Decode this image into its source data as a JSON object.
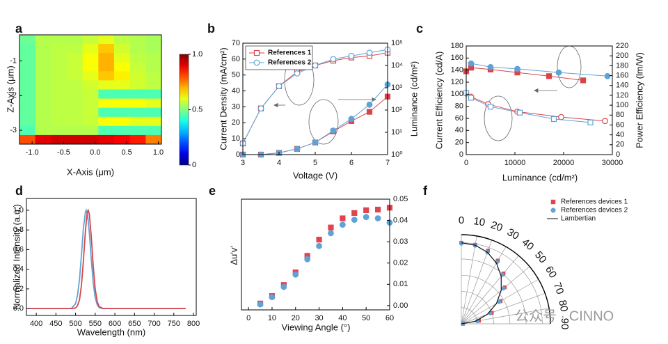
{
  "panel_labels": [
    "a",
    "b",
    "c",
    "d",
    "e",
    "f"
  ],
  "watermark": "公众号 · CINNO",
  "chart_data": [
    {
      "type": "heatmap",
      "xlabel": "X-Axis (μm)",
      "ylabel": "Z-Axis (μm)",
      "xlim": [
        -1.2,
        1.05
      ],
      "ylim": [
        -3.4,
        -0.25
      ],
      "xticks": [
        {
          "value": -1,
          "label": "-1.0"
        },
        -0.5,
        {
          "value": 0,
          "label": "0.0"
        },
        0.5,
        {
          "value": 1,
          "label": "1.0"
        }
      ],
      "yticks": [
        -3,
        -2,
        -1
      ],
      "values": [
        [
          0.48,
          0.55,
          0.55,
          0.55,
          0.57,
          0.6,
          0.56,
          0.55,
          0.54
        ],
        [
          0.47,
          0.55,
          0.56,
          0.56,
          0.6,
          0.68,
          0.58,
          0.55,
          0.54
        ],
        [
          0.47,
          0.55,
          0.56,
          0.57,
          0.62,
          0.7,
          0.6,
          0.56,
          0.55
        ],
        [
          0.47,
          0.55,
          0.56,
          0.57,
          0.62,
          0.7,
          0.62,
          0.57,
          0.55
        ],
        [
          0.47,
          0.55,
          0.56,
          0.57,
          0.6,
          0.68,
          0.64,
          0.58,
          0.56
        ],
        [
          0.47,
          0.55,
          0.56,
          0.56,
          0.58,
          0.6,
          0.6,
          0.58,
          0.56
        ],
        [
          0.47,
          0.55,
          0.56,
          0.56,
          0.57,
          0.45,
          0.45,
          0.45,
          0.45
        ],
        [
          0.47,
          0.55,
          0.56,
          0.56,
          0.57,
          0.62,
          0.62,
          0.62,
          0.6
        ],
        [
          0.47,
          0.55,
          0.56,
          0.56,
          0.57,
          0.45,
          0.45,
          0.45,
          0.45
        ],
        [
          0.47,
          0.55,
          0.56,
          0.56,
          0.57,
          0.62,
          0.62,
          0.6,
          0.6
        ],
        [
          0.45,
          0.55,
          0.55,
          0.55,
          0.55,
          0.45,
          0.45,
          0.45,
          0.45
        ],
        [
          0.8,
          0.9,
          0.92,
          0.92,
          0.92,
          0.9,
          0.88,
          0.85,
          0.75
        ]
      ],
      "clim": [
        0,
        1
      ],
      "cticks": [
        0,
        0.5,
        {
          "value": 1,
          "label": "1.0"
        }
      ]
    },
    {
      "type": "line",
      "xlabel": "Voltage (V)",
      "ylabel": "Current Density (mA/cm²)",
      "y2label": "Luminance (cd/m²)",
      "x": [
        3,
        3.5,
        4,
        4.5,
        5,
        5.5,
        6,
        6.5,
        7
      ],
      "xlim": [
        3,
        7
      ],
      "xticks": [
        3,
        4,
        5,
        6,
        7
      ],
      "ylim": [
        0,
        70
      ],
      "yticks": [
        0,
        10,
        20,
        30,
        40,
        50,
        60,
        70
      ],
      "y2lim": [
        1,
        100000
      ],
      "y2scale": "log",
      "y2ticks": [
        {
          "value": 1,
          "label": "10⁰"
        },
        {
          "value": 10,
          "label": "10¹"
        },
        {
          "value": 100,
          "label": "10²"
        },
        {
          "value": 1000,
          "label": "10³"
        },
        {
          "value": 10000,
          "label": "10⁴"
        },
        {
          "value": 100000,
          "label": "10⁵"
        }
      ],
      "legend": "upper left",
      "series": [
        {
          "name": "References 1",
          "color": "#d9444b",
          "marker": "square",
          "filled": false,
          "values": [
            7,
            29,
            43,
            52,
            56,
            59,
            61,
            62,
            64
          ]
        },
        {
          "name": "References 2",
          "color": "#5fa3d6",
          "marker": "circle",
          "filled": false,
          "values": [
            7,
            29,
            43,
            51,
            56,
            60,
            62,
            64,
            66
          ]
        },
        {
          "color": "#d9444b",
          "marker": "square",
          "filled": true,
          "axis": "y2",
          "values": [
            1,
            1,
            1.2,
            1.8,
            3.5,
            11,
            32,
            83,
            400
          ]
        },
        {
          "color": "#5fa3d6",
          "marker": "circle",
          "filled": true,
          "axis": "y2",
          "values": [
            1,
            1,
            1.2,
            1.8,
            3.5,
            12,
            40,
            175,
            1400
          ]
        }
      ]
    },
    {
      "type": "line",
      "xlabel": "Luminance (cd/m²)",
      "ylabel": "Current Efficiency (cd/A)",
      "y2label": "Power Efficiency (lm/W)",
      "xlim": [
        0,
        30000
      ],
      "xticks": [
        0,
        10000,
        20000,
        30000
      ],
      "ylim": [
        0,
        180
      ],
      "yticks": [
        0,
        20,
        40,
        60,
        80,
        100,
        120,
        140,
        160,
        180
      ],
      "y2lim": [
        0,
        220
      ],
      "y2ticks": [
        0,
        20,
        40,
        60,
        80,
        100,
        120,
        140,
        160,
        180,
        200,
        220
      ],
      "series": [
        {
          "color": "#d9444b",
          "marker": "square",
          "filled": true,
          "x": [
            0,
            1000,
            5000,
            10500,
            17000,
            24000
          ],
          "values": [
            138,
            144,
            141,
            136,
            130,
            123
          ]
        },
        {
          "color": "#5fa3d6",
          "marker": "circle",
          "filled": true,
          "x": [
            1000,
            5000,
            10500,
            19000,
            29000
          ],
          "values": [
            151,
            145,
            142,
            136,
            130
          ]
        },
        {
          "color": "#d9444b",
          "marker": "circle",
          "filled": false,
          "axis": "y2",
          "x": [
            0,
            1000,
            4500,
            10500,
            19500,
            28500
          ],
          "values": [
            124,
            117,
            102,
            87,
            76,
            68
          ]
        },
        {
          "color": "#5fa3d6",
          "marker": "square",
          "filled": false,
          "axis": "y2",
          "x": [
            0,
            1000,
            5000,
            11000,
            18000,
            25500
          ],
          "values": [
            125,
            115,
            97,
            85,
            72,
            65
          ]
        }
      ]
    },
    {
      "type": "line",
      "xlabel": "Wavelength (nm)",
      "ylabel": "Normalized Intensity (a.u.)",
      "x": [
        380,
        480,
        490,
        500,
        505,
        510,
        515,
        520,
        525,
        527,
        530,
        532,
        535,
        540,
        545,
        550,
        555,
        560,
        570,
        600,
        780
      ],
      "xlim": [
        375,
        807
      ],
      "xticks": [
        400,
        450,
        500,
        550,
        600,
        650,
        700,
        750,
        800
      ],
      "ylim": [
        -0.07,
        1.12
      ],
      "yticks": [
        {
          "value": 0,
          "label": "0.0"
        },
        0.2,
        0.4,
        0.6,
        0.8,
        {
          "value": 1,
          "label": "1.0"
        }
      ],
      "series": [
        {
          "color": "#5fa3d6",
          "values": [
            0,
            0,
            0.003,
            0.05,
            0.135,
            0.3,
            0.55,
            0.82,
            0.98,
            1,
            0.96,
            0.9,
            0.77,
            0.5,
            0.26,
            0.11,
            0.04,
            0.01,
            0,
            0,
            0
          ]
        },
        {
          "color": "#d9444b",
          "values": [
            0,
            0,
            0,
            0.006,
            0.03,
            0.09,
            0.24,
            0.49,
            0.78,
            0.88,
            0.98,
            1,
            0.96,
            0.73,
            0.43,
            0.2,
            0.07,
            0.02,
            0,
            0,
            0
          ]
        }
      ]
    },
    {
      "type": "scatter",
      "xlabel": "Viewing Angle (°)",
      "ylabel": "Δu′v′",
      "yside": "right",
      "x": [
        5,
        10,
        15,
        20,
        25,
        30,
        35,
        40,
        45,
        50,
        55,
        60
      ],
      "xlim": [
        -3,
        60
      ],
      "xticks": [
        0,
        10,
        20,
        30,
        40,
        50,
        60
      ],
      "ylim": [
        -0.002,
        0.05
      ],
      "yticks": [
        {
          "value": 0,
          "label": "0.00"
        },
        0.01,
        0.02,
        0.03,
        0.04,
        0.05
      ],
      "series": [
        {
          "color": "#e0454f",
          "marker": "square",
          "filled": true,
          "values": [
            0.001,
            0.0045,
            0.0097,
            0.0156,
            0.0234,
            0.031,
            0.0367,
            0.041,
            0.0435,
            0.0448,
            0.0451,
            0.046
          ]
        },
        {
          "color": "#5fa3d6",
          "marker": "circle",
          "filled": true,
          "values": [
            0.0006,
            0.004,
            0.0088,
            0.0146,
            0.0218,
            0.028,
            0.034,
            0.038,
            0.0403,
            0.0416,
            0.041,
            0.039
          ]
        }
      ]
    },
    {
      "type": "polar",
      "theta": [
        0,
        10,
        20,
        30,
        40,
        50,
        60,
        70,
        80,
        90
      ],
      "rlim": [
        0,
        1.1
      ],
      "rticks": [
        0.2,
        0.4,
        0.6,
        0.8,
        1
      ],
      "thetaticks": [
        0,
        10,
        20,
        30,
        40,
        50,
        60,
        70,
        80,
        90
      ],
      "grid": true,
      "legend": "upper right",
      "series": [
        {
          "name": "References devices 1",
          "color": "#e0454f",
          "marker": "square",
          "filled": true,
          "values": [
            1,
            0.99,
            0.96,
            0.9,
            0.81,
            0.7,
            0.56,
            0.4,
            0.22,
            0.02
          ]
        },
        {
          "name": "References devices 2",
          "color": "#5fa3d6",
          "marker": "circle",
          "filled": true,
          "values": [
            0.99,
            0.98,
            0.94,
            0.88,
            0.79,
            0.68,
            0.54,
            0.38,
            0.2,
            0.02
          ]
        },
        {
          "name": "Lambertian",
          "color": "#111111",
          "values": [
            1,
            0.985,
            0.94,
            0.866,
            0.766,
            0.643,
            0.5,
            0.342,
            0.174,
            0
          ]
        }
      ]
    }
  ]
}
